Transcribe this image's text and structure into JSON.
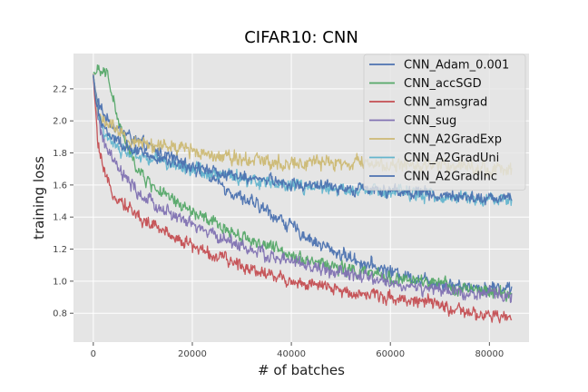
{
  "chart_data": {
    "type": "line",
    "title": "CIFAR10: CNN",
    "xlabel": "# of batches",
    "ylabel": "training loss",
    "xlim": [
      -4000,
      88000
    ],
    "ylim": [
      0.62,
      2.42
    ],
    "xticks": [
      0,
      20000,
      40000,
      60000,
      80000
    ],
    "xtick_labels": [
      "0",
      "20000",
      "40000",
      "60000",
      "80000"
    ],
    "yticks": [
      0.8,
      1.0,
      1.2,
      1.4,
      1.6,
      1.8,
      2.0,
      2.2
    ],
    "ytick_labels": [
      "0.8",
      "1.0",
      "1.2",
      "1.4",
      "1.6",
      "1.8",
      "2.0",
      "2.2"
    ],
    "grid": true,
    "legend_position": "top-right",
    "x_approx": [
      0,
      500,
      1000,
      2000,
      3000,
      5000,
      7500,
      10000,
      15000,
      20000,
      25000,
      30000,
      35000,
      40000,
      45000,
      50000,
      55000,
      60000,
      65000,
      70000,
      75000,
      80000,
      84500
    ],
    "series": [
      {
        "name": "CNN_Adam_0.001",
        "color": "#4c72b0",
        "noise": 0.05,
        "values": [
          2.28,
          2.18,
          2.1,
          2.05,
          2.0,
          1.95,
          1.9,
          1.85,
          1.78,
          1.72,
          1.62,
          1.52,
          1.44,
          1.34,
          1.24,
          1.17,
          1.11,
          1.06,
          1.02,
          0.99,
          0.97,
          0.96,
          0.96
        ]
      },
      {
        "name": "CNN_accSGD",
        "color": "#55a868",
        "noise": 0.05,
        "values": [
          2.3,
          2.3,
          2.3,
          2.3,
          2.28,
          2.0,
          1.78,
          1.65,
          1.52,
          1.43,
          1.35,
          1.28,
          1.22,
          1.17,
          1.12,
          1.08,
          1.05,
          1.02,
          1.0,
          0.98,
          0.95,
          0.93,
          0.92
        ]
      },
      {
        "name": "CNN_amsgrad",
        "color": "#c44e52",
        "noise": 0.05,
        "values": [
          2.27,
          2.05,
          1.85,
          1.68,
          1.6,
          1.52,
          1.45,
          1.38,
          1.3,
          1.22,
          1.15,
          1.1,
          1.05,
          1.0,
          0.97,
          0.94,
          0.92,
          0.9,
          0.88,
          0.85,
          0.8,
          0.78,
          0.77
        ]
      },
      {
        "name": "CNN_sug",
        "color": "#8172b2",
        "noise": 0.05,
        "values": [
          2.29,
          2.15,
          2.02,
          1.88,
          1.8,
          1.7,
          1.6,
          1.52,
          1.43,
          1.35,
          1.28,
          1.22,
          1.16,
          1.12,
          1.08,
          1.05,
          1.02,
          0.99,
          0.96,
          0.94,
          0.93,
          0.92,
          0.91
        ]
      },
      {
        "name": "CNN_A2GradExp",
        "color": "#ccb974",
        "noise": 0.055,
        "values": [
          2.29,
          2.15,
          2.05,
          2.0,
          1.98,
          1.92,
          1.88,
          1.86,
          1.84,
          1.82,
          1.79,
          1.77,
          1.75,
          1.74,
          1.74,
          1.73,
          1.74,
          1.72,
          1.72,
          1.73,
          1.72,
          1.7,
          1.69
        ]
      },
      {
        "name": "CNN_A2GradUni",
        "color": "#64b5cd",
        "noise": 0.05,
        "values": [
          2.28,
          2.14,
          2.03,
          1.95,
          1.9,
          1.83,
          1.8,
          1.78,
          1.74,
          1.7,
          1.67,
          1.64,
          1.62,
          1.6,
          1.58,
          1.57,
          1.56,
          1.55,
          1.54,
          1.53,
          1.52,
          1.51,
          1.51
        ]
      },
      {
        "name": "CNN_A2GradInc",
        "color": "#4c72b0",
        "noise": 0.045,
        "values": [
          2.28,
          2.13,
          2.04,
          1.97,
          1.92,
          1.86,
          1.82,
          1.79,
          1.75,
          1.71,
          1.68,
          1.65,
          1.63,
          1.61,
          1.6,
          1.58,
          1.57,
          1.56,
          1.55,
          1.54,
          1.53,
          1.52,
          1.52
        ]
      }
    ]
  }
}
